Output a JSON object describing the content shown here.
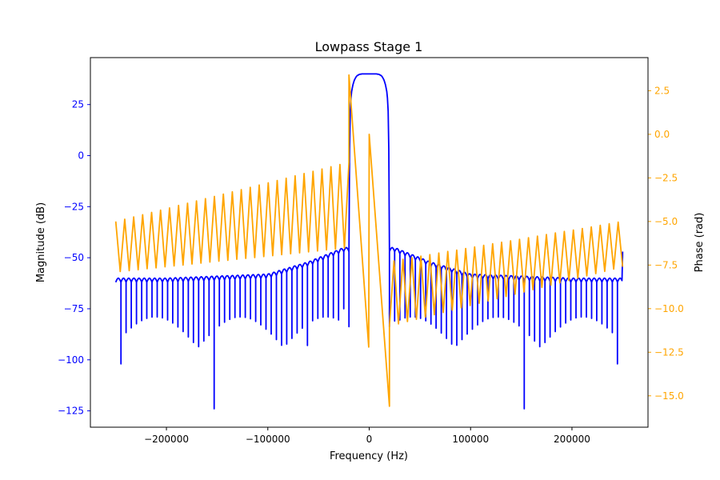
{
  "chart_data": {
    "type": "line",
    "title": "Lowpass Stage 1",
    "xlabel": "Frequency (Hz)",
    "ylabel_left": "Magnitude (dB)",
    "ylabel_right": "Phase (rad)",
    "xlim": [
      -275000,
      275000
    ],
    "ylim_left": [
      -133,
      48
    ],
    "ylim_right": [
      -16.8,
      4.4
    ],
    "xticks": [
      -200000,
      -100000,
      0,
      100000,
      200000
    ],
    "xtick_labels": [
      "−200000",
      "−100000",
      "0",
      "100000",
      "200000"
    ],
    "yticks_left": [
      25,
      0,
      -25,
      -50,
      -75,
      -100,
      -125
    ],
    "ytick_labels_left": [
      "25",
      "0",
      "−25",
      "−50",
      "−75",
      "−100",
      "−125"
    ],
    "yticks_right": [
      2.5,
      0.0,
      -2.5,
      -5.0,
      -7.5,
      -10.0,
      -12.5,
      -15.0
    ],
    "ytick_labels_right": [
      "2.5",
      "0.0",
      "−2.5",
      "−5.0",
      "−7.5",
      "−10.0",
      "−12.5",
      "−15.0"
    ],
    "grid": false,
    "colors": {
      "magnitude": "#0000ff",
      "phase": "#ffa500",
      "left_axis": "#0000ff",
      "right_axis": "#ffa500"
    },
    "series": [
      {
        "axis": "left",
        "x_range": [
          -250000,
          250000
        ],
        "passband": [
          -20000,
          20000
        ],
        "passband_peak_db": 40,
        "passband_edge_db": -47,
        "sidelobe_envelope": [
          [
            -250000,
            -60
          ],
          [
            -200000,
            -60
          ],
          [
            -100000,
            -58
          ],
          [
            -60000,
            -52
          ],
          [
            -25000,
            -45
          ]
        ],
        "sidelobe_count_per_side": 45,
        "notch_floor_db": [
          -100,
          -75
        ],
        "deep_notches": [
          [
            -245000,
            -102
          ],
          [
            -154000,
            -124
          ],
          [
            -63000,
            -93
          ],
          [
            -43000,
            -99
          ],
          [
            -25000,
            -75
          ],
          [
            25000,
            -81
          ],
          [
            43000,
            -99
          ],
          [
            154000,
            -124
          ],
          [
            245000,
            -102
          ]
        ],
        "values": []
      },
      {
        "axis": "right",
        "x_range": [
          -250000,
          250000
        ],
        "passband": [
          -20000,
          20000
        ],
        "passband_linear": [
          [
            -20000,
            3.4
          ],
          [
            20000,
            -15.6
          ]
        ],
        "stopband_zigzag": [
          [
            -250000,
            -5.0,
            -7.9
          ],
          [
            -20000,
            -1.6,
            -6.5
          ],
          [
            20000,
            -7.3,
            -11.0
          ],
          [
            250000,
            -5.0,
            -7.6
          ]
        ],
        "wraps_in_passband": [
          [
            -20000,
            3.4
          ],
          [
            -500,
            -12.2
          ],
          [
            0,
            0.0
          ],
          [
            20000,
            -15.6
          ]
        ],
        "values": []
      }
    ]
  }
}
